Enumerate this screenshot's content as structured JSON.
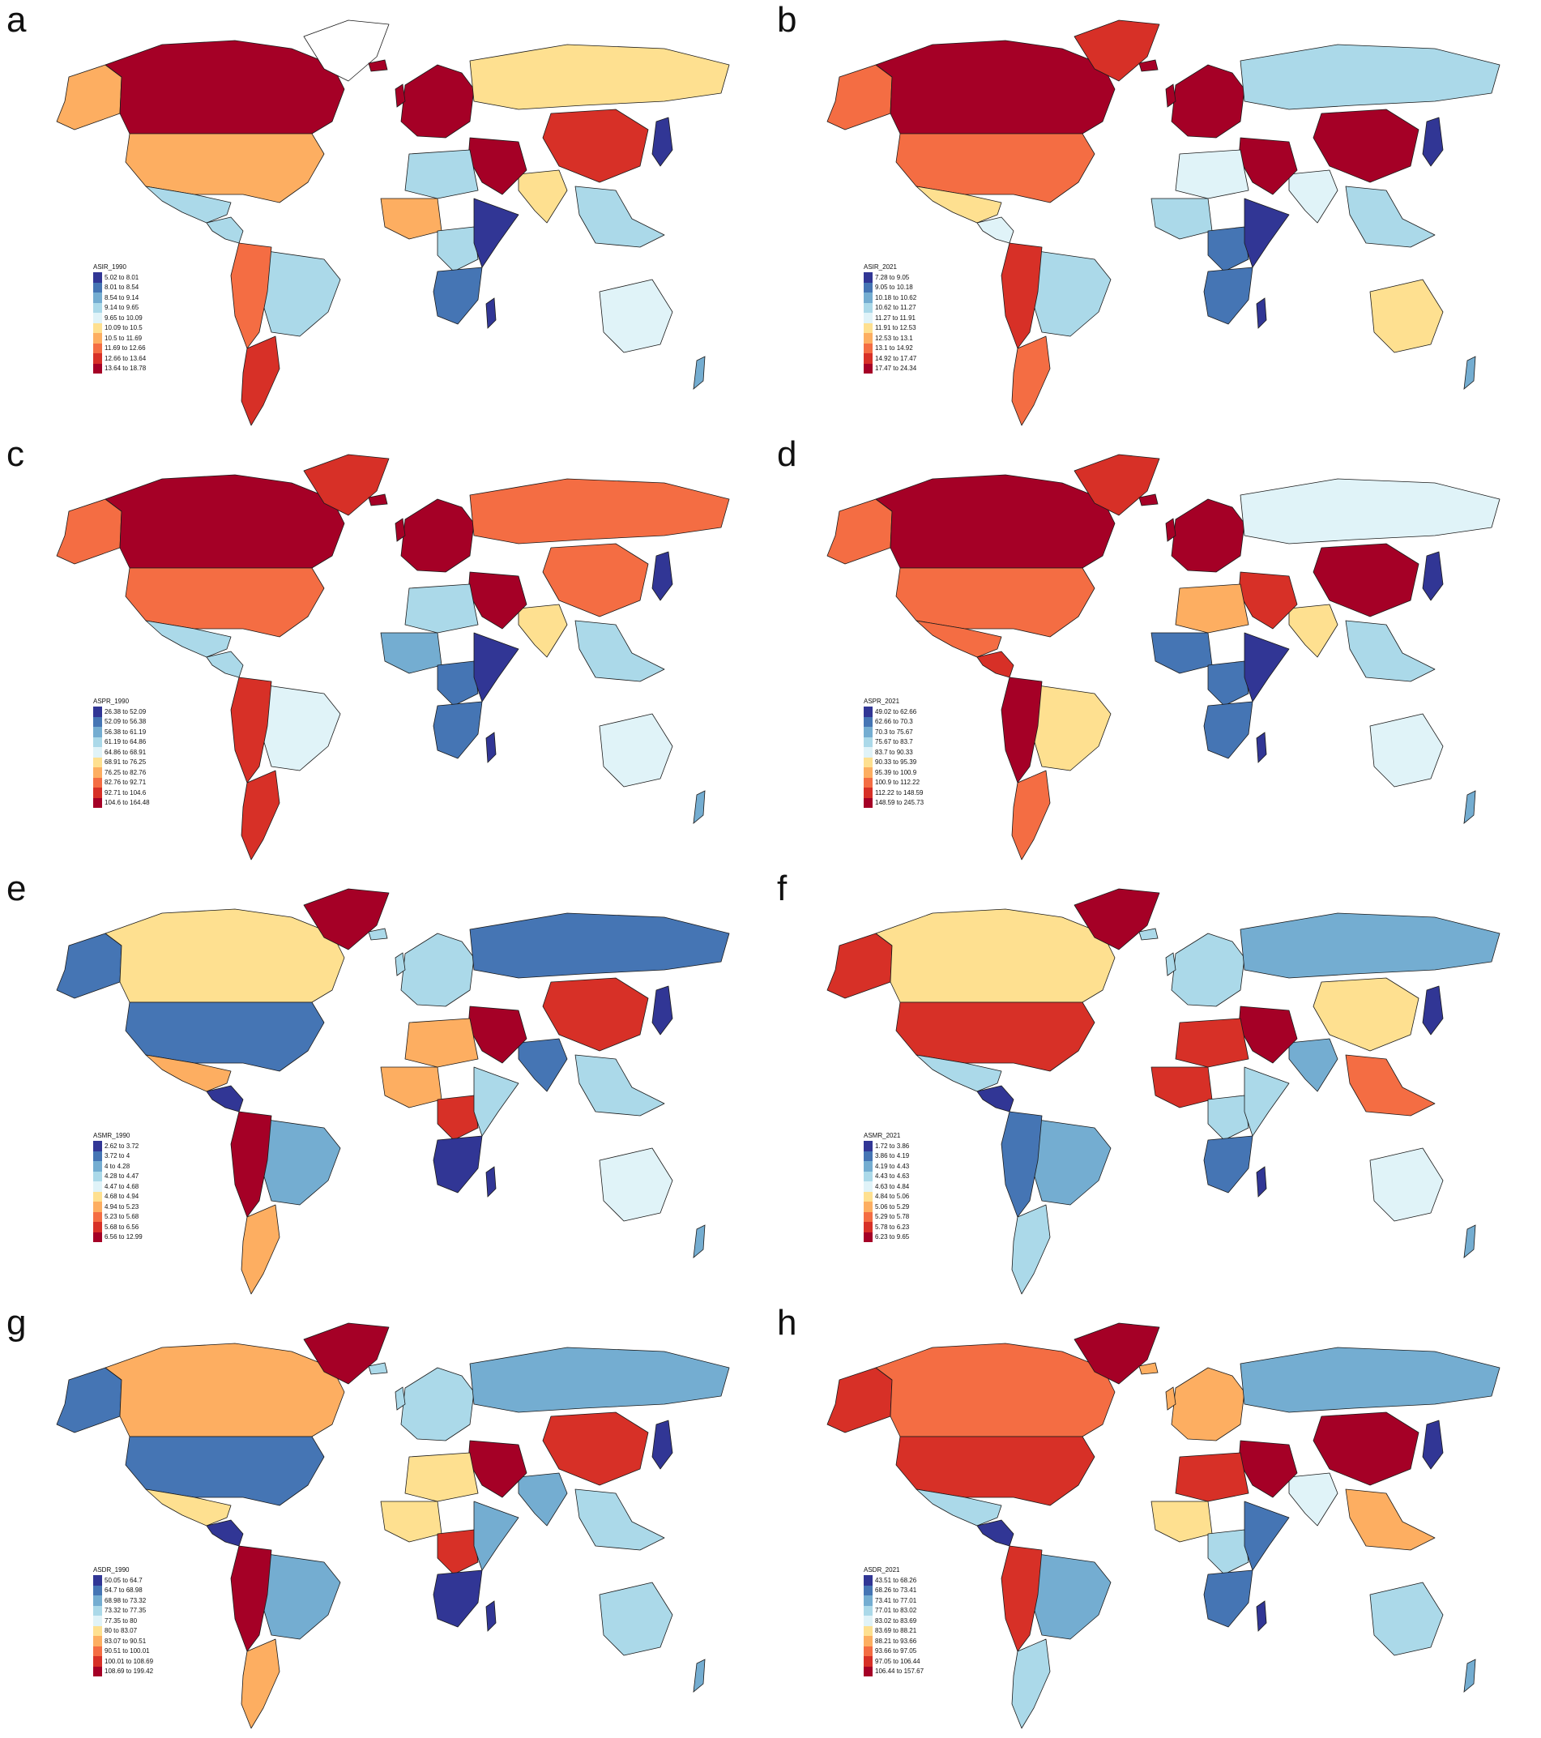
{
  "palette": [
    "#313695",
    "#4575b4",
    "#74add1",
    "#abd9e9",
    "#e0f3f8",
    "#fee090",
    "#fdae61",
    "#f46d43",
    "#d73027",
    "#a50026"
  ],
  "panels": [
    {
      "letter": "a",
      "legend_title": "ASIR_1990",
      "legend": [
        "5.02 to 8.01",
        "8.01 to 8.54",
        "8.54 to 9.14",
        "9.14 to 9.65",
        "9.65 to 10.09",
        "10.09 to 10.5",
        "10.5 to 11.69",
        "11.69 to 12.66",
        "12.66 to 13.64",
        "13.64 to 18.78"
      ],
      "regions": {
        "north_america": 9,
        "usa": 6,
        "alaska": 6,
        "greenland": -1,
        "mexico": 3,
        "central_america": 3,
        "brazil": 3,
        "andes": 7,
        "southern_cone": 8,
        "europe": 9,
        "russia": 5,
        "china": 8,
        "india": 5,
        "middle_east": 9,
        "north_africa": 3,
        "west_africa": 6,
        "central_africa": 3,
        "east_africa": 0,
        "southern_africa": 1,
        "southeast_asia": 3,
        "australia": 4,
        "japan": 0
      }
    },
    {
      "letter": "b",
      "legend_title": "ASIR_2021",
      "legend": [
        "7.28 to 9.05",
        "9.05 to 10.18",
        "10.18 to 10.62",
        "10.62 to 11.27",
        "11.27 to 11.91",
        "11.91 to 12.53",
        "12.53 to 13.1",
        "13.1 to 14.92",
        "14.92 to 17.47",
        "17.47 to 24.34"
      ],
      "regions": {
        "north_america": 9,
        "usa": 7,
        "alaska": 7,
        "greenland": 8,
        "mexico": 5,
        "central_america": 4,
        "brazil": 3,
        "andes": 8,
        "southern_cone": 7,
        "europe": 9,
        "russia": 3,
        "china": 9,
        "india": 4,
        "middle_east": 9,
        "north_africa": 4,
        "west_africa": 3,
        "central_africa": 1,
        "east_africa": 0,
        "southern_africa": 1,
        "southeast_asia": 3,
        "australia": 5,
        "japan": 0
      }
    },
    {
      "letter": "c",
      "legend_title": "ASPR_1990",
      "legend": [
        "26.38 to 52.09",
        "52.09 to 56.38",
        "56.38 to 61.19",
        "61.19 to 64.86",
        "64.86 to 68.91",
        "68.91 to 76.25",
        "76.25 to 82.76",
        "82.76 to 92.71",
        "92.71 to 104.6",
        "104.6 to 164.48"
      ],
      "regions": {
        "north_america": 9,
        "usa": 7,
        "alaska": 7,
        "greenland": 8,
        "mexico": 3,
        "central_america": 3,
        "brazil": 4,
        "andes": 8,
        "southern_cone": 8,
        "europe": 9,
        "russia": 7,
        "china": 7,
        "india": 5,
        "middle_east": 9,
        "north_africa": 3,
        "west_africa": 2,
        "central_africa": 1,
        "east_africa": 0,
        "southern_africa": 1,
        "southeast_asia": 3,
        "australia": 4,
        "japan": 0
      }
    },
    {
      "letter": "d",
      "legend_title": "ASPR_2021",
      "legend": [
        "49.02 to 62.66",
        "62.66 to 70.3",
        "70.3 to 75.67",
        "75.67 to 83.7",
        "83.7 to 90.33",
        "90.33 to 95.39",
        "95.39 to 100.9",
        "100.9 to 112.22",
        "112.22 to 148.59",
        "148.59 to 245.73"
      ],
      "regions": {
        "north_america": 9,
        "usa": 7,
        "alaska": 7,
        "greenland": 8,
        "mexico": 7,
        "central_america": 8,
        "brazil": 5,
        "andes": 9,
        "southern_cone": 7,
        "europe": 9,
        "russia": 4,
        "china": 9,
        "india": 5,
        "middle_east": 8,
        "north_africa": 6,
        "west_africa": 1,
        "central_africa": 1,
        "east_africa": 0,
        "southern_africa": 1,
        "southeast_asia": 3,
        "australia": 4,
        "japan": 0
      }
    },
    {
      "letter": "e",
      "legend_title": "ASMR_1990",
      "legend": [
        "2.62 to 3.72",
        "3.72 to 4",
        "4 to 4.28",
        "4.28 to 4.47",
        "4.47 to 4.68",
        "4.68 to 4.94",
        "4.94 to 5.23",
        "5.23 to 5.68",
        "5.68 to 6.56",
        "6.56 to 12.99"
      ],
      "regions": {
        "north_america": 5,
        "usa": 1,
        "alaska": 1,
        "greenland": 9,
        "mexico": 6,
        "central_america": 0,
        "brazil": 2,
        "andes": 9,
        "southern_cone": 6,
        "europe": 3,
        "russia": 1,
        "china": 8,
        "india": 1,
        "middle_east": 9,
        "north_africa": 6,
        "west_africa": 6,
        "central_africa": 8,
        "east_africa": 3,
        "southern_africa": 0,
        "southeast_asia": 3,
        "australia": 4,
        "japan": 0
      }
    },
    {
      "letter": "f",
      "legend_title": "ASMR_2021",
      "legend": [
        "1.72 to 3.86",
        "3.86 to 4.19",
        "4.19 to 4.43",
        "4.43 to 4.63",
        "4.63 to 4.84",
        "4.84 to 5.06",
        "5.06 to 5.29",
        "5.29 to 5.78",
        "5.78 to 6.23",
        "6.23 to 9.65"
      ],
      "regions": {
        "north_america": 5,
        "usa": 8,
        "alaska": 8,
        "greenland": 9,
        "mexico": 3,
        "central_america": 0,
        "brazil": 2,
        "andes": 1,
        "southern_cone": 3,
        "europe": 3,
        "russia": 2,
        "china": 5,
        "india": 2,
        "middle_east": 9,
        "north_africa": 8,
        "west_africa": 8,
        "central_africa": 3,
        "east_africa": 3,
        "southern_africa": 1,
        "southeast_asia": 7,
        "australia": 4,
        "japan": 0
      }
    },
    {
      "letter": "g",
      "legend_title": "ASDR_1990",
      "legend": [
        "50.05 to 64.7",
        "64.7 to 68.98",
        "68.98 to 73.32",
        "73.32 to 77.35",
        "77.35 to 80",
        "80 to 83.07",
        "83.07 to 90.51",
        "90.51 to 100.01",
        "100.01 to 108.69",
        "108.69 to 199.42"
      ],
      "regions": {
        "north_america": 6,
        "usa": 1,
        "alaska": 1,
        "greenland": 9,
        "mexico": 5,
        "central_america": 0,
        "brazil": 2,
        "andes": 9,
        "southern_cone": 6,
        "europe": 3,
        "russia": 2,
        "china": 8,
        "india": 2,
        "middle_east": 9,
        "north_africa": 5,
        "west_africa": 5,
        "central_africa": 8,
        "east_africa": 2,
        "southern_africa": 0,
        "southeast_asia": 3,
        "australia": 3,
        "japan": 0
      }
    },
    {
      "letter": "h",
      "legend_title": "ASDR_2021",
      "legend": [
        "43.51 to 68.26",
        "68.26 to 73.41",
        "73.41 to 77.01",
        "77.01 to 83.02",
        "83.02 to 83.69",
        "83.69 to 88.21",
        "88.21 to 93.66",
        "93.66 to 97.05",
        "97.05 to 106.44",
        "106.44 to 157.67"
      ],
      "regions": {
        "north_america": 7,
        "usa": 8,
        "alaska": 8,
        "greenland": 9,
        "mexico": 3,
        "central_america": 0,
        "brazil": 2,
        "andes": 8,
        "southern_cone": 3,
        "europe": 6,
        "russia": 2,
        "china": 9,
        "india": 4,
        "middle_east": 9,
        "north_africa": 8,
        "west_africa": 5,
        "central_africa": 3,
        "east_africa": 1,
        "southern_africa": 1,
        "southeast_asia": 6,
        "australia": 3,
        "japan": 0
      }
    }
  ]
}
